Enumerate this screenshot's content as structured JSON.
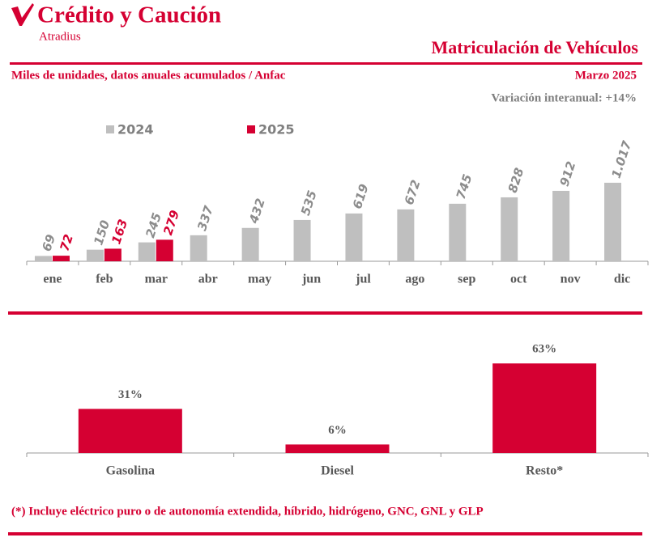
{
  "header": {
    "brand": "Crédito y Caución",
    "sub_brand": "Atradius",
    "title": "Matriculación de Vehículos",
    "subtitle": "Miles de unidades, datos anuales acumulados / Anfac",
    "date": "Marzo 2025",
    "variation": "Variación interanual: +14%"
  },
  "chart_data": [
    {
      "type": "bar",
      "categories": [
        "ene",
        "feb",
        "mar",
        "abr",
        "may",
        "jun",
        "jul",
        "ago",
        "sep",
        "oct",
        "nov",
        "dic"
      ],
      "series": [
        {
          "name": "2024",
          "color": "#bfbfbf",
          "values": [
            69,
            150,
            245,
            337,
            432,
            535,
            619,
            672,
            745,
            828,
            912,
            1017
          ],
          "value_labels": [
            "69",
            "150",
            "245",
            "337",
            "432",
            "535",
            "619",
            "672",
            "745",
            "828",
            "912",
            "1.017"
          ]
        },
        {
          "name": "2025",
          "color": "#d50032",
          "values": [
            72,
            163,
            279,
            null,
            null,
            null,
            null,
            null,
            null,
            null,
            null,
            null
          ]
        }
      ],
      "ylim": [
        0,
        1100
      ]
    },
    {
      "type": "bar",
      "categories": [
        "Gasolina",
        "Diesel",
        "Resto*"
      ],
      "values": [
        31,
        6,
        63
      ],
      "value_labels": [
        "31%",
        "6%",
        "63%"
      ],
      "color": "#d50032",
      "ylim": [
        0,
        70
      ]
    }
  ],
  "footnote": "(*) Incluye eléctrico puro o de autonomía extendida, híbrido, hidrógeno, GNC, GNL y GLP"
}
